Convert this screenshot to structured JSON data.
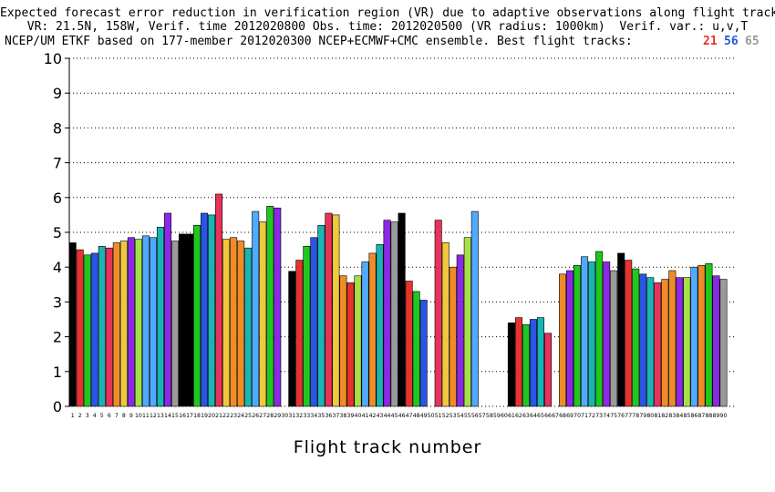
{
  "title": {
    "line1": "Expected forecast error reduction in verification region (VR) due to adaptive observations along flight tracks.",
    "line2": "VR: 21.5N, 158W, Verif. time 2012020800 Obs. time: 2012020500 (VR radius: 1000km)  Verif. var.: u,v,T",
    "line3": "NCEP/UM ETKF based on 177-member 2012020300 NCEP+ECMWF+CMC ensemble. Best flight tracks:",
    "best_tracks": [
      "21",
      "56",
      "65"
    ]
  },
  "colors": {
    "best1": "#e8322e",
    "best2": "#2a55e5",
    "best3": "#9a9a9a",
    "palette": [
      "#000000",
      "#e8322e",
      "#1ec81e",
      "#2a55e5",
      "#1ab4b4",
      "#e8325a",
      "#f08c28",
      "#f0c83c",
      "#a5e146",
      "#50aaff",
      "#8c28e6",
      "#9a9a9a"
    ]
  },
  "chart_data": {
    "type": "bar",
    "xlabel": "Flight track number",
    "ylabel": "",
    "ylim": [
      0,
      10
    ],
    "yticks": [
      0,
      1,
      2,
      3,
      4,
      5,
      6,
      7,
      8,
      9,
      10
    ],
    "grid": "horizontal dotted",
    "categories": [
      "1",
      "2",
      "3",
      "4",
      "5",
      "6",
      "7",
      "8",
      "9",
      "10",
      "11",
      "12",
      "13",
      "14",
      "15",
      "16",
      "17",
      "18",
      "19",
      "20",
      "21",
      "22",
      "23",
      "24",
      "25",
      "26",
      "27",
      "28",
      "29",
      "30",
      "31",
      "32",
      "33",
      "34",
      "35",
      "36",
      "37",
      "38",
      "39",
      "40",
      "41",
      "42",
      "43",
      "44",
      "45",
      "46",
      "47",
      "48",
      "49",
      "50",
      "51",
      "52",
      "53",
      "54",
      "55",
      "56",
      "57",
      "58",
      "59",
      "60",
      "61",
      "62",
      "63",
      "64",
      "65",
      "66",
      "67",
      "68",
      "69",
      "70",
      "71",
      "72",
      "73",
      "74",
      "75",
      "76",
      "77",
      "78",
      "79",
      "80",
      "81",
      "82",
      "83",
      "84",
      "85",
      "86",
      "87",
      "88",
      "89",
      "90"
    ],
    "values": [
      4.7,
      4.5,
      4.35,
      4.4,
      4.6,
      4.55,
      4.7,
      4.75,
      4.85,
      4.8,
      4.9,
      4.85,
      5.15,
      5.55,
      4.75,
      4.95,
      4.95,
      5.2,
      5.55,
      5.5,
      6.1,
      4.8,
      4.85,
      4.75,
      4.55,
      5.6,
      5.3,
      5.75,
      5.7,
      0,
      3.88,
      4.2,
      4.6,
      4.85,
      5.2,
      5.55,
      5.5,
      3.75,
      3.55,
      3.75,
      4.15,
      4.4,
      4.65,
      5.35,
      5.3,
      5.55,
      3.6,
      3.3,
      3.05,
      0,
      5.35,
      4.7,
      4.0,
      4.35,
      4.85,
      5.6,
      0,
      0,
      0,
      0,
      2.4,
      2.55,
      2.35,
      2.5,
      2.55,
      2.1,
      0,
      3.8,
      3.9,
      4.05,
      4.3,
      4.15,
      4.45,
      4.15,
      3.9,
      4.4,
      4.2,
      3.95,
      3.8,
      3.7,
      3.55,
      3.65,
      3.9,
      3.7,
      3.7,
      4.0,
      4.05,
      4.1,
      3.75,
      3.65
    ],
    "bar_colors": [
      "#000000",
      "#e8322e",
      "#1ec81e",
      "#2a55e5",
      "#1ab4b4",
      "#e8325a",
      "#f08c28",
      "#f0c83c",
      "#8c28e6",
      "#a5e146",
      "#50aaff",
      "#50aaff",
      "#1ab4b4",
      "#8c28e6",
      "#9a9a9a",
      "#000000",
      "#000000",
      "#1ec81e",
      "#2a55e5",
      "#1ab4b4",
      "#e8325a",
      "#f0c83c",
      "#f08c28",
      "#f08c28",
      "#1ab4b4",
      "#50aaff",
      "#f0c83c",
      "#1ec81e",
      "#8c28e6",
      "#ffffff",
      "#000000",
      "#e8322e",
      "#1ec81e",
      "#2a55e5",
      "#1ab4b4",
      "#e8325a",
      "#f0c83c",
      "#f08c28",
      "#e8322e",
      "#a5e146",
      "#50aaff",
      "#f08c28",
      "#1ab4b4",
      "#8c28e6",
      "#9a9a9a",
      "#000000",
      "#e8322e",
      "#1ec81e",
      "#2a55e5",
      "#ffffff",
      "#e8325a",
      "#f0c83c",
      "#f08c28",
      "#8c28e6",
      "#a5e146",
      "#50aaff",
      "#ffffff",
      "#ffffff",
      "#ffffff",
      "#ffffff",
      "#000000",
      "#e8322e",
      "#1ec81e",
      "#2a55e5",
      "#1ab4b4",
      "#e8325a",
      "#ffffff",
      "#f08c28",
      "#8c28e6",
      "#1ec81e",
      "#50aaff",
      "#1ab4b4",
      "#1ec81e",
      "#8c28e6",
      "#9a9a9a",
      "#000000",
      "#e8322e",
      "#1ec81e",
      "#2a55e5",
      "#1ab4b4",
      "#e8325a",
      "#f08c28",
      "#f08c28",
      "#8c28e6",
      "#a5e146",
      "#50aaff",
      "#f08c28",
      "#1ec81e",
      "#8c28e6",
      "#9a9a9a"
    ]
  }
}
